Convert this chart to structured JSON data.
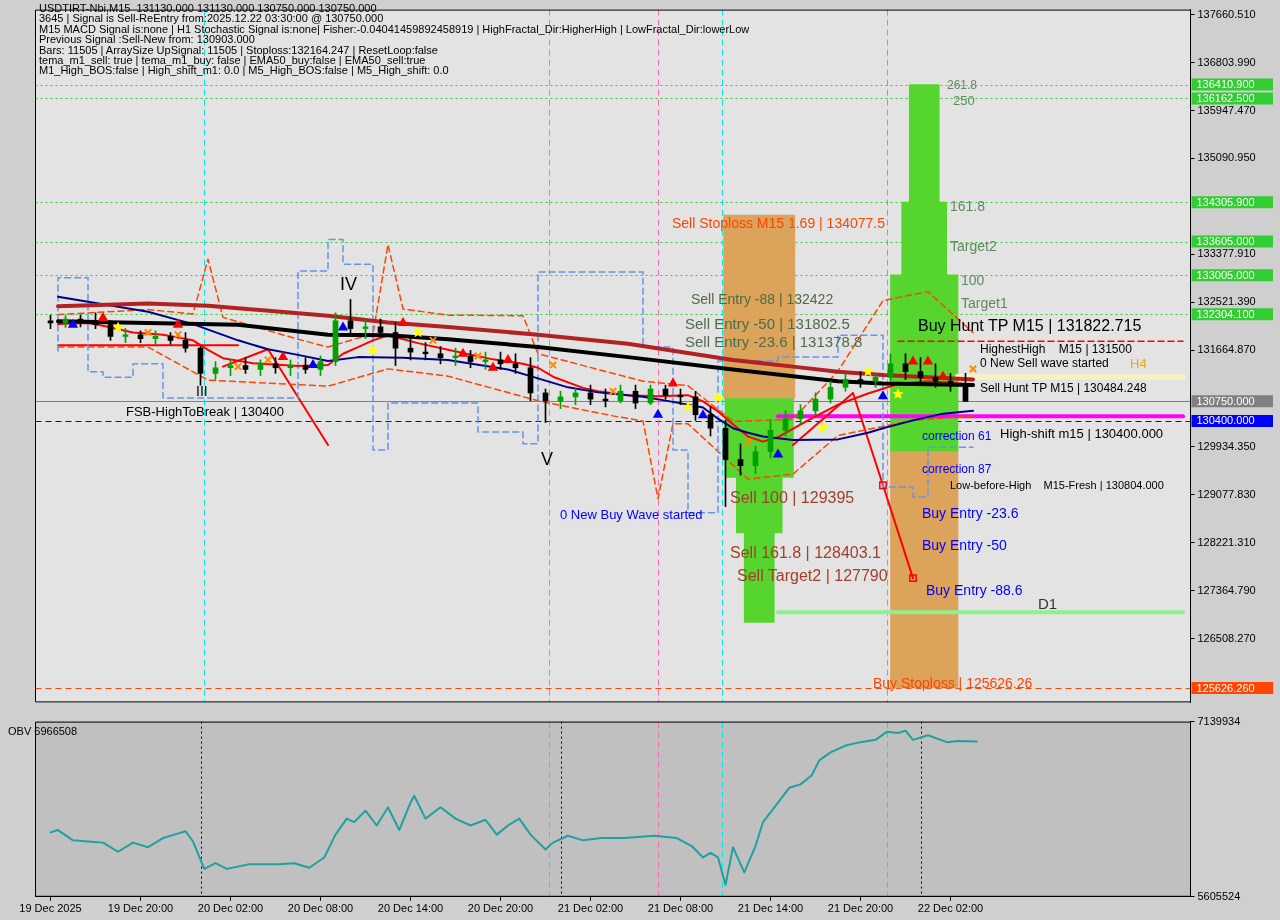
{
  "chart_data": [
    {
      "type": "candlestick",
      "xlim": [
        "2025-12-19T13:00",
        "2025-12-22T18:00"
      ],
      "ylim": [
        125370,
        137750
      ],
      "tick_labels": "y",
      "yticks": [
        {
          "value": 137660.51,
          "label": "137660.510"
        },
        {
          "value": 136803.99,
          "label": "136803.990"
        },
        {
          "value": 135947.47,
          "label": "135947.470"
        },
        {
          "value": 135090.95,
          "label": "135090.950"
        },
        {
          "value": 133377.91,
          "label": "133377.910"
        },
        {
          "value": 132521.39,
          "label": "132521.390"
        },
        {
          "value": 131664.87,
          "label": "131664.870"
        },
        {
          "value": 129934.35,
          "label": "129934.350"
        },
        {
          "value": 129077.83,
          "label": "129077.830"
        },
        {
          "value": 128221.31,
          "label": "128221.310"
        },
        {
          "value": 127364.79,
          "label": "127364.790"
        },
        {
          "value": 126508.27,
          "label": "126508.270"
        }
      ],
      "ref_lines": [
        {
          "axis": "y",
          "value": 136410.9,
          "label": "136410.900",
          "color": "#32cd32",
          "line_style": "dotted"
        },
        {
          "axis": "y",
          "value": 136162.5,
          "label": "136162.500",
          "color": "#32cd32",
          "line_style": "dotted"
        },
        {
          "axis": "y",
          "value": 134305.9,
          "label": "134305.900",
          "color": "#32cd32",
          "line_style": "dotted"
        },
        {
          "axis": "y",
          "value": 133605,
          "label": "133605.000",
          "color": "#32cd32",
          "line_style": "dotted"
        },
        {
          "axis": "y",
          "value": 133005,
          "label": "133005.000",
          "color": "#32cd32",
          "line_style": "dotted"
        },
        {
          "axis": "y",
          "value": 132304.1,
          "label": "132304.100",
          "color": "#32cd32",
          "line_style": "dotted"
        },
        {
          "axis": "y",
          "value": 130750,
          "label": "130750.000",
          "color": "#808080",
          "line_style": "solid"
        },
        {
          "axis": "y",
          "value": 130400,
          "label": "130400.000",
          "color": "#0000ff",
          "line_style": "dashed"
        },
        {
          "axis": "y",
          "value": 125626.26,
          "label": "125626.260",
          "color": "#ff4500",
          "line_style": "dashed"
        },
        {
          "axis": "x",
          "value": "2025-12-20T00:15",
          "color": "#00e5ee",
          "line_style": "dashed"
        },
        {
          "axis": "x",
          "value": "2025-12-20T23:15",
          "color": "#00e5ee",
          "line_style": "dashed"
        },
        {
          "axis": "x",
          "value": "2025-12-21T10:45",
          "color": "#00e5ee",
          "line_style": "dashed"
        },
        {
          "axis": "x",
          "value": "2025-12-21T06:30",
          "color": "#ff69b4",
          "line_style": "dashed"
        },
        {
          "axis": "x",
          "value": "2025-12-21T21:45",
          "color": "#ff69b4",
          "line_style": "dashed"
        }
      ],
      "annotations": [
        "USDTIRT-Nbi,M15  131130.000 131130.000 130750.000 130750.000",
        "3645 | Signal is Sell-ReEntry from:2025.12.22 03:30:00 @ 130750.000",
        "M15 MACD Signal is:none | H1 Stochastic Signal is:none| Fisher:-0.04041459892458919 | HighFractal_Dir:HigherHigh | LowFractal_Dir:lowerLow",
        "Previous Signal :Sell-New from: 130903.000",
        "Bars: 11505 | ArraySize UpSignal: 11505 | Stoploss:132164.247 | ResetLoop:false",
        "tema_m1_sell: true | tema_m1_buy: false | EMA50_buy:false | EMA50_sell:true",
        "M1_High_BOS:false | High_shift_m1: 0.0 | M5_High_BOS:false | M5_High_shift: 0.0",
        "Sell Stoploss M15 1.69 | 134077.5",
        "Sell Entry -88 | 132422",
        "Sell Entry -50 | 131802.5",
        "Sell Entry -23.6 | 131378.8",
        "High-shift m15 | 130400.000",
        "0 New Sell wave started",
        "0 New Buy Wave started",
        "Sell 100 | 129395",
        "Sell 161.8 | 128403.1",
        "Sell Target2 | 127790",
        "Buy Hunt TP M15 | 131822.715",
        "HighestHigh    M15 | 131500",
        "Low-before-High    M15-Fresh | 130804.000",
        "Sell Hunt TP M15 | 130484.248",
        "correction 61",
        "correction 87",
        "Buy Entry -23.6",
        "Buy Entry -50",
        "Buy Entry -88.6",
        "Buy Stoploss | 125626.26",
        "261.8",
        "250",
        "161.8",
        "Target2",
        "100",
        "Target1",
        "H4",
        "D1",
        "FSB-HighToBreak | 130400",
        "IV",
        "V",
        "III"
      ],
      "series": [
        {
          "type": "candlestick",
          "x": [
            "2025-12-19T14:00",
            "2025-12-19T15:00",
            "2025-12-19T16:00",
            "2025-12-19T17:00",
            "2025-12-19T18:00",
            "2025-12-19T19:00",
            "2025-12-19T20:00",
            "2025-12-19T21:00",
            "2025-12-19T22:00",
            "2025-12-19T23:00",
            "2025-12-20T00:00",
            "2025-12-20T01:00",
            "2025-12-20T02:00",
            "2025-12-20T03:00",
            "2025-12-20T04:00",
            "2025-12-20T05:00",
            "2025-12-20T06:00",
            "2025-12-20T07:00",
            "2025-12-20T08:00",
            "2025-12-20T09:00",
            "2025-12-20T10:00",
            "2025-12-20T11:00",
            "2025-12-20T12:00",
            "2025-12-20T13:00",
            "2025-12-20T14:00",
            "2025-12-20T15:00",
            "2025-12-20T16:00",
            "2025-12-20T17:00",
            "2025-12-20T18:00",
            "2025-12-20T19:00",
            "2025-12-20T20:00",
            "2025-12-20T21:00",
            "2025-12-20T22:00",
            "2025-12-20T23:00",
            "2025-12-21T00:00",
            "2025-12-21T01:00",
            "2025-12-21T02:00",
            "2025-12-21T03:00",
            "2025-12-21T04:00",
            "2025-12-21T05:00",
            "2025-12-21T06:00",
            "2025-12-21T07:00",
            "2025-12-21T08:00",
            "2025-12-21T09:00",
            "2025-12-21T10:00",
            "2025-12-21T11:00",
            "2025-12-21T12:00",
            "2025-12-21T13:00",
            "2025-12-21T14:00",
            "2025-12-21T15:00",
            "2025-12-21T16:00",
            "2025-12-21T17:00",
            "2025-12-21T18:00",
            "2025-12-21T19:00",
            "2025-12-21T20:00",
            "2025-12-21T21:00",
            "2025-12-21T22:00",
            "2025-12-21T23:00",
            "2025-12-22T00:00",
            "2025-12-22T01:00",
            "2025-12-22T02:00",
            "2025-12-22T03:00"
          ],
          "ohlc": [
            [
              132190,
              132290,
              132050,
              132150
            ],
            [
              132150,
              132280,
              132070,
              132220
            ],
            [
              132220,
              132290,
              132080,
              132190
            ],
            [
              132190,
              132330,
              132050,
              132120
            ],
            [
              132120,
              132190,
              131840,
              131910
            ],
            [
              131910,
              132050,
              131800,
              131940
            ],
            [
              131940,
              132010,
              131800,
              131870
            ],
            [
              131870,
              132010,
              131770,
              131910
            ],
            [
              131910,
              131980,
              131770,
              131840
            ],
            [
              131840,
              131980,
              131630,
              131700
            ],
            [
              131700,
              131730,
              131040,
              131250
            ],
            [
              131250,
              131460,
              131140,
              131350
            ],
            [
              131350,
              131490,
              131210,
              131390
            ],
            [
              131390,
              131530,
              131250,
              131320
            ],
            [
              131320,
              131490,
              131210,
              131420
            ],
            [
              131420,
              131530,
              131250,
              131350
            ],
            [
              131350,
              131490,
              131210,
              131390
            ],
            [
              131390,
              131530,
              131250,
              131320
            ],
            [
              131320,
              131560,
              131210,
              131460
            ],
            [
              131460,
              132330,
              131390,
              132190
            ],
            [
              132190,
              132570,
              131910,
              132050
            ],
            [
              132050,
              132220,
              131870,
              132080
            ],
            [
              132080,
              132220,
              131910,
              131980
            ],
            [
              131980,
              132150,
              131390,
              131700
            ],
            [
              131700,
              131870,
              131490,
              131630
            ],
            [
              131630,
              131800,
              131490,
              131600
            ],
            [
              131600,
              131730,
              131420,
              131530
            ],
            [
              131530,
              131700,
              131390,
              131560
            ],
            [
              131560,
              131660,
              131350,
              131460
            ],
            [
              131460,
              131630,
              131320,
              131490
            ],
            [
              131490,
              131630,
              131320,
              131420
            ],
            [
              131420,
              131600,
              131250,
              131350
            ],
            [
              131350,
              131530,
              130760,
              130900
            ],
            [
              130900,
              130970,
              130370,
              130760
            ],
            [
              130760,
              130930,
              130620,
              130830
            ],
            [
              130830,
              131000,
              130690,
              130900
            ],
            [
              130900,
              131040,
              130690,
              130790
            ],
            [
              130790,
              130970,
              130650,
              130760
            ],
            [
              130760,
              131040,
              130720,
              130930
            ],
            [
              130930,
              131040,
              130620,
              130720
            ],
            [
              130720,
              131040,
              130690,
              130970
            ],
            [
              130970,
              131040,
              130790,
              130860
            ],
            [
              130860,
              130970,
              130690,
              130830
            ],
            [
              130830,
              130930,
              130410,
              130510
            ],
            [
              130510,
              130650,
              130130,
              130270
            ],
            [
              130270,
              130410,
              128870,
              129710
            ],
            [
              129710,
              129990,
              129430,
              129600
            ],
            [
              129600,
              129950,
              129460,
              129850
            ],
            [
              129850,
              130410,
              129740,
              130230
            ],
            [
              130230,
              130580,
              130130,
              130440
            ],
            [
              130440,
              130690,
              130340,
              130580
            ],
            [
              130580,
              130900,
              130510,
              130790
            ],
            [
              130790,
              131110,
              130720,
              131000
            ],
            [
              131000,
              131250,
              130930,
              131140
            ],
            [
              131140,
              131280,
              131000,
              131110
            ],
            [
              131110,
              131250,
              131000,
              131180
            ],
            [
              131180,
              131600,
              131110,
              131420
            ],
            [
              131420,
              131600,
              131140,
              131280
            ],
            [
              131280,
              131530,
              131040,
              131180
            ],
            [
              131180,
              131420,
              131000,
              131110
            ],
            [
              131110,
              131250,
              130930,
              131040
            ],
            [
              131040,
              131250,
              130750,
              130750
            ]
          ],
          "colors": [
            "#000000",
            "#00a000",
            "#000000",
            "#000000",
            "#000000",
            "#00a000",
            "#000000",
            "#00a000",
            "#000000",
            "#000000",
            "#000000",
            "#00a000",
            "#00a000",
            "#000000",
            "#00a000",
            "#000000",
            "#00a000",
            "#000000",
            "#00a000",
            "#00a000",
            "#000000",
            "#00a000",
            "#000000",
            "#000000",
            "#000000",
            "#000000",
            "#000000",
            "#00a000",
            "#000000",
            "#00a000",
            "#000000",
            "#000000",
            "#000000",
            "#000000",
            "#00a000",
            "#00a000",
            "#000000",
            "#000000",
            "#00a000",
            "#000000",
            "#00a000",
            "#000000",
            "#000000",
            "#000000",
            "#000000",
            "#000000",
            "#000000",
            "#00a000",
            "#00a000",
            "#00a000",
            "#00a000",
            "#00a000",
            "#00a000",
            "#00a000",
            "#000000",
            "#00a000",
            "#00a000",
            "#000000",
            "#000000",
            "#000000",
            "#000000",
            "#000000"
          ]
        },
        {
          "type": "bar",
          "colors": [
            "#55d52d",
            "#dca35a"
          ],
          "x": [
            "2025-12-21T13:15",
            "2025-12-22T00:15"
          ],
          "base": [
            126800,
            125630
          ],
          "values": [
            1600,
            4220
          ]
        },
        {
          "type": "bar",
          "color": "#55d52d",
          "x": [
            "2025-12-21T13:15",
            "2025-12-22T00:15"
          ],
          "base": [
            128400,
            129850
          ],
          "values": [
            990,
            3160
          ]
        },
        {
          "type": "bar",
          "color": "#55d52d",
          "x": [
            "2025-12-21T13:15",
            "2025-12-22T00:15"
          ],
          "base": [
            129390,
            133010
          ],
          "values": [
            1410,
            1300
          ]
        },
        {
          "type": "bar",
          "colors": [
            "#dca35a",
            "#55d52d"
          ],
          "x": [
            "2025-12-21T13:15",
            "2025-12-22T00:15"
          ],
          "base": [
            130800,
            134310
          ],
          "values": [
            3280,
            2100
          ]
        },
        {
          "type": "line",
          "color": "#b22222",
          "x": [
            "2025-12-19T14:30",
            "2025-12-19T20:30",
            "2025-12-20T00:30",
            "2025-12-20T08:30",
            "2025-12-20T12:30",
            "2025-12-20T16:30",
            "2025-12-20T22:30",
            "2025-12-21T04:30",
            "2025-12-21T11:30",
            "2025-12-21T15:30",
            "2025-12-21T18:30",
            "2025-12-21T21:30",
            "2025-12-22T03:30"
          ],
          "values": [
            132450,
            132500,
            132460,
            132280,
            132160,
            132080,
            131940,
            131780,
            131490,
            131370,
            131280,
            131220,
            131140
          ]
        },
        {
          "type": "line",
          "color": "#000000",
          "x": [
            "2025-12-19T14:30",
            "2025-12-19T20:30",
            "2025-12-20T02:30",
            "2025-12-20T08:30",
            "2025-12-20T12:30",
            "2025-12-20T16:30",
            "2025-12-20T22:30",
            "2025-12-21T04:30",
            "2025-12-21T11:30",
            "2025-12-21T15:30",
            "2025-12-21T18:30",
            "2025-12-21T21:30",
            "2025-12-22T03:30"
          ],
          "values": [
            132180,
            132150,
            132120,
            131940,
            131930,
            131860,
            131720,
            131540,
            131320,
            131200,
            131110,
            131070,
            131040
          ]
        },
        {
          "type": "line",
          "color": "#00008b",
          "x": [
            "2025-12-19T14:30",
            "2025-12-19T20:30",
            "2025-12-19T23:30",
            "2025-12-20T02:30",
            "2025-12-20T04:30",
            "2025-12-20T06:30",
            "2025-12-20T08:30",
            "2025-12-20T10:30",
            "2025-12-20T13:30",
            "2025-12-20T16:30",
            "2025-12-20T20:30",
            "2025-12-20T22:30",
            "2025-12-21T00:30",
            "2025-12-21T02:30",
            "2025-12-21T05:30",
            "2025-12-21T07:30",
            "2025-12-21T09:30",
            "2025-12-21T10:30",
            "2025-12-21T11:30",
            "2025-12-21T12:30",
            "2025-12-21T13:30",
            "2025-12-21T15:30",
            "2025-12-21T18:30",
            "2025-12-21T20:30",
            "2025-12-21T21:30",
            "2025-12-21T23:30",
            "2025-12-22T01:30",
            "2025-12-22T03:30"
          ],
          "values": [
            132620,
            132350,
            132130,
            131840,
            131680,
            131580,
            131470,
            131540,
            131530,
            131490,
            131320,
            131160,
            131000,
            130910,
            130830,
            130740,
            130640,
            130440,
            130270,
            130190,
            130120,
            130060,
            130070,
            130190,
            130270,
            130410,
            130530,
            130580
          ]
        },
        {
          "type": "line",
          "color": "#ff0000",
          "x": [
            "2025-12-19T14:30",
            "2025-12-19T16:30",
            "2025-12-19T17:30",
            "2025-12-19T19:30",
            "2025-12-19T21:30",
            "2025-12-19T23:30",
            "2025-12-20T00:30",
            "2025-12-20T01:30",
            "2025-12-20T03:30",
            "2025-12-20T06:30",
            "2025-12-20T08:30",
            "2025-12-20T09:30",
            "2025-12-20T10:30",
            "2025-12-20T11:30",
            "2025-12-20T12:30",
            "2025-12-20T14:30",
            "2025-12-20T16:30",
            "2025-12-20T19:30",
            "2025-12-20T21:30",
            "2025-12-20T22:30",
            "2025-12-20T23:30",
            "2025-12-21T01:30",
            "2025-12-21T02:30",
            "2025-12-21T04:30",
            "2025-12-21T06:30",
            "2025-12-21T08:30",
            "2025-12-21T09:30",
            "2025-12-21T10:30",
            "2025-12-21T11:30",
            "2025-12-21T12:30",
            "2025-12-21T13:30",
            "2025-12-21T14:30",
            "2025-12-21T16:30",
            "2025-12-21T18:30",
            "2025-12-21T20:30",
            "2025-12-21T22:30",
            "2025-12-22T00:30",
            "2025-12-22T03:30"
          ],
          "values": [
            132130,
            132150,
            132100,
            131980,
            131940,
            131840,
            131670,
            131520,
            131430,
            131380,
            131400,
            131600,
            131720,
            131840,
            131930,
            131790,
            131670,
            131500,
            131420,
            131350,
            131190,
            130990,
            130930,
            130860,
            130840,
            130860,
            130750,
            130570,
            130340,
            130120,
            130030,
            130110,
            130410,
            130690,
            130890,
            131060,
            131110,
            131050
          ]
        },
        {
          "type": "step",
          "color": "#6495ed",
          "line_style": "dashed",
          "x": [
            "2025-12-19T14:30",
            "2025-12-19T16:30",
            "2025-12-19T17:30",
            "2025-12-19T19:30",
            "2025-12-19T21:30",
            "2025-12-20T06:30",
            "2025-12-20T08:30",
            "2025-12-20T09:30",
            "2025-12-20T11:30",
            "2025-12-20T12:30",
            "2025-12-20T18:30",
            "2025-12-20T21:30",
            "2025-12-20T22:30",
            "2025-12-21T05:30",
            "2025-12-21T07:30",
            "2025-12-21T08:30",
            "2025-12-21T10:30",
            "2025-12-21T14:30",
            "2025-12-21T18:30",
            "2025-12-21T21:30",
            "2025-12-21T23:30",
            "2025-12-22T00:30",
            "2025-12-22T01:30",
            "2025-12-22T03:30"
          ],
          "values": [
            131650,
            132960,
            131280,
            131180,
            131420,
            130810,
            133080,
            133640,
            133200,
            129880,
            130720,
            130200,
            129990,
            133060,
            131720,
            129880,
            128760,
            131470,
            131540,
            131930,
            129220,
            129040,
            129930,
            129930
          ]
        },
        {
          "type": "line",
          "color": "#ff4500",
          "line_style": "dashed",
          "x": [
            "2025-12-19T14:30",
            "2025-12-19T20:30",
            "2025-12-19T23:30",
            "2025-12-20T00:30",
            "2025-12-20T01:30",
            "2025-12-20T06:30",
            "2025-12-20T08:30",
            "2025-12-20T11:30",
            "2025-12-20T12:30",
            "2025-12-20T13:30",
            "2025-12-20T16:30",
            "2025-12-20T21:30",
            "2025-12-20T22:30",
            "2025-12-21T05:30",
            "2025-12-21T08:30",
            "2025-12-21T11:30",
            "2025-12-21T15:30",
            "2025-12-21T18:30",
            "2025-12-21T21:30",
            "2025-12-22T00:30",
            "2025-12-22T03:30"
          ],
          "values": [
            132300,
            132390,
            132310,
            133290,
            132250,
            131860,
            131720,
            131960,
            133550,
            132400,
            132290,
            132280,
            131600,
            131110,
            131030,
            130390,
            130430,
            131290,
            132550,
            132710,
            131980
          ]
        },
        {
          "type": "line",
          "color": "#ff4500",
          "line_style": "dashed",
          "x": [
            "2025-12-19T14:30",
            "2025-12-19T20:30",
            "2025-12-20T00:30",
            "2025-12-20T08:30",
            "2025-12-20T12:30",
            "2025-12-20T16:30",
            "2025-12-20T22:30",
            "2025-12-21T03:30",
            "2025-12-21T05:30",
            "2025-12-21T06:30",
            "2025-12-21T07:30",
            "2025-12-21T08:30",
            "2025-12-21T12:30",
            "2025-12-21T15:30",
            "2025-12-21T18:30",
            "2025-12-21T23:30",
            "2025-12-22T03:30"
          ],
          "values": [
            131720,
            131720,
            131130,
            131020,
            131330,
            131200,
            130760,
            130490,
            130400,
            129010,
            130350,
            130350,
            129360,
            129450,
            130140,
            130410,
            130490
          ]
        },
        {
          "type": "line",
          "color": "#ff0000",
          "x": [
            "2025-12-19T14:30",
            "2025-12-20T02:30"
          ],
          "values": [
            131750,
            131750
          ]
        },
        {
          "type": "line",
          "color": "#ff0000",
          "x": [
            "2025-12-20T01:30",
            "2025-12-20T04:30",
            "2025-12-20T08:30"
          ],
          "values": [
            131370,
            131680,
            129970
          ]
        },
        {
          "type": "line",
          "color": "#ff0000",
          "x": [
            "2025-12-21T15:30",
            "2025-12-21T19:30",
            "2025-12-21T21:30",
            "2025-12-21T23:30"
          ],
          "values": [
            129970,
            130900,
            129250,
            127590
          ]
        },
        {
          "type": "scatter",
          "color": "#ff0000",
          "marker": "square",
          "x": [
            "2025-12-21T21:30",
            "2025-12-21T23:30"
          ],
          "values": [
            129250,
            127590
          ]
        },
        {
          "type": "line",
          "color": "#ff0000",
          "line_style": "dashed",
          "x": [
            "2025-12-21T22:30",
            "2025-12-22T17:30"
          ],
          "values": [
            131822.715,
            131822.715
          ]
        },
        {
          "type": "line",
          "color": "#ff00ff",
          "x": [
            "2025-12-21T14:30",
            "2025-12-22T17:30"
          ],
          "values": [
            130484.248,
            130484.248
          ]
        },
        {
          "type": "line",
          "color": "#f5f0c8",
          "x": [
            "2025-12-22T02:30",
            "2025-12-22T17:30"
          ],
          "values": [
            131190,
            131190
          ]
        },
        {
          "type": "line",
          "color": "#90ee90",
          "x": [
            "2025-12-21T14:30",
            "2025-12-22T17:30"
          ],
          "values": [
            126980,
            126980
          ]
        },
        {
          "type": "scatter",
          "color": "#ff0000",
          "marker": "triangle",
          "x": [
            "2025-12-19T17:30",
            "2025-12-19T22:30",
            "2025-12-20T05:30",
            "2025-12-20T13:30",
            "2025-12-20T17:30",
            "2025-12-20T19:30",
            "2025-12-20T20:30",
            "2025-12-21T07:30",
            "2025-12-21T23:30",
            "2025-12-22T00:30",
            "2025-12-22T01:30"
          ],
          "values": [
            132240,
            132120,
            131540,
            132150,
            131600,
            131350,
            131490,
            131070,
            131460,
            131460,
            131190
          ]
        },
        {
          "type": "scatter",
          "color": "#0000ff",
          "marker": "triangle",
          "x": [
            "2025-12-19T15:30",
            "2025-12-20T07:30",
            "2025-12-20T09:30",
            "2025-12-21T06:30",
            "2025-12-21T09:30",
            "2025-12-21T14:30",
            "2025-12-21T21:30"
          ],
          "values": [
            132120,
            131400,
            132070,
            130510,
            130500,
            129800,
            130840
          ]
        },
        {
          "type": "scatter",
          "color": "#ffff00",
          "marker": "star",
          "x": [
            "2025-12-19T18:30",
            "2025-12-20T11:30",
            "2025-12-20T14:30",
            "2025-12-21T08:30",
            "2025-12-21T10:30",
            "2025-12-21T17:30",
            "2025-12-21T20:30",
            "2025-12-21T22:30"
          ],
          "values": [
            132070,
            131660,
            131980,
            130650,
            130810,
            130280,
            131280,
            130880
          ]
        },
        {
          "type": "scatter",
          "color": "#ff8c00",
          "marker": "cross",
          "x": [
            "2025-12-19T20:30",
            "2025-12-19T22:30",
            "2025-12-20T02:30",
            "2025-12-20T04:30",
            "2025-12-20T15:30",
            "2025-12-20T18:30",
            "2025-12-20T23:30",
            "2025-12-21T03:30",
            "2025-12-21T12:30",
            "2025-12-22T03:30"
          ],
          "values": [
            131980,
            131940,
            131370,
            131490,
            131840,
            131560,
            131400,
            130930,
            130020,
            131330
          ]
        }
      ]
    },
    {
      "type": "line",
      "title": "OBV 6966508",
      "color": "#20a0a0",
      "xlim": [
        "2025-12-19T13:00",
        "2025-12-22T18:00"
      ],
      "ylim": [
        5605524,
        7139934
      ],
      "yticks": [
        5605524,
        7139934
      ],
      "xticks": [
        {
          "value": "2025-12-19T14:00",
          "label": "19 Dec 2025"
        },
        {
          "value": "2025-12-19T20:00",
          "label": "19 Dec 20:00"
        },
        {
          "value": "2025-12-20T02:00",
          "label": "20 Dec 02:00"
        },
        {
          "value": "2025-12-20T08:00",
          "label": "20 Dec 08:00"
        },
        {
          "value": "2025-12-20T14:00",
          "label": "20 Dec 14:00"
        },
        {
          "value": "2025-12-20T20:00",
          "label": "20 Dec 20:00"
        },
        {
          "value": "2025-12-21T02:00",
          "label": "21 Dec 02:00"
        },
        {
          "value": "2025-12-21T08:00",
          "label": "21 Dec 08:00"
        },
        {
          "value": "2025-12-21T14:00",
          "label": "21 Dec 14:00"
        },
        {
          "value": "2025-12-21T20:00",
          "label": "21 Dec 20:00"
        },
        {
          "value": "2025-12-22T02:00",
          "label": "22 Dec 02:00"
        }
      ],
      "ref_lines": [
        {
          "axis": "x",
          "value": "2025-12-20T00:00",
          "color": "#000000",
          "line_style": "dotted"
        },
        {
          "axis": "x",
          "value": "2025-12-21T00:00",
          "color": "#000000",
          "line_style": "dotted"
        },
        {
          "axis": "x",
          "value": "2025-12-22T00:00",
          "color": "#000000",
          "line_style": "dotted"
        },
        {
          "axis": "x",
          "value": "2025-12-20T23:15",
          "color": "#00e5ee",
          "line_style": "dashed"
        },
        {
          "axis": "x",
          "value": "2025-12-21T10:45",
          "color": "#00e5ee",
          "line_style": "dashed"
        },
        {
          "axis": "x",
          "value": "2025-12-21T06:30",
          "color": "#ff69b4",
          "line_style": "dashed"
        },
        {
          "axis": "x",
          "value": "2025-12-21T21:45",
          "color": "#ff69b4",
          "line_style": "dashed"
        }
      ],
      "x": [
        "2025-12-19T14:00",
        "2025-12-19T14:30",
        "2025-12-19T15:30",
        "2025-12-19T16:30",
        "2025-12-19T17:30",
        "2025-12-19T18:30",
        "2025-12-19T19:30",
        "2025-12-19T20:30",
        "2025-12-19T21:30",
        "2025-12-19T22:15",
        "2025-12-19T23:00",
        "2025-12-19T23:30",
        "2025-12-20T00:15",
        "2025-12-20T01:00",
        "2025-12-20T01:45",
        "2025-12-20T03:15",
        "2025-12-20T05:15",
        "2025-12-20T06:15",
        "2025-12-20T07:15",
        "2025-12-20T08:15",
        "2025-12-20T09:00",
        "2025-12-20T09:45",
        "2025-12-20T10:15",
        "2025-12-20T11:00",
        "2025-12-20T11:45",
        "2025-12-20T12:30",
        "2025-12-20T13:15",
        "2025-12-20T14:00",
        "2025-12-20T14:15",
        "2025-12-20T15:00",
        "2025-12-20T16:00",
        "2025-12-20T17:00",
        "2025-12-20T18:00",
        "2025-12-20T19:00",
        "2025-12-20T19:45",
        "2025-12-20T20:30",
        "2025-12-20T21:15",
        "2025-12-20T22:00",
        "2025-12-20T23:00",
        "2025-12-20T23:30",
        "2025-12-21T00:30",
        "2025-12-21T01:30",
        "2025-12-21T02:45",
        "2025-12-21T04:15",
        "2025-12-21T06:15",
        "2025-12-21T07:45",
        "2025-12-21T08:45",
        "2025-12-21T09:30",
        "2025-12-21T10:00",
        "2025-12-21T10:30",
        "2025-12-21T11:00",
        "2025-12-21T11:30",
        "2025-12-21T12:15",
        "2025-12-21T13:00",
        "2025-12-21T13:30",
        "2025-12-21T14:30",
        "2025-12-21T15:15",
        "2025-12-21T16:00",
        "2025-12-21T16:45",
        "2025-12-21T17:15",
        "2025-12-21T18:00",
        "2025-12-21T19:00",
        "2025-12-21T20:00",
        "2025-12-21T21:00",
        "2025-12-21T21:45",
        "2025-12-21T22:30",
        "2025-12-21T23:00",
        "2025-12-21T23:30",
        "2025-12-22T00:30",
        "2025-12-22T01:45",
        "2025-12-22T02:30",
        "2025-12-22T03:45"
      ],
      "values": [
        6170000,
        6190000,
        6100000,
        6090000,
        6080000,
        6000000,
        6080000,
        6040000,
        6120000,
        6150000,
        6180000,
        6090000,
        5850000,
        5900000,
        5850000,
        5890000,
        5890000,
        5900000,
        5860000,
        5950000,
        6150000,
        6290000,
        6260000,
        6360000,
        6230000,
        6390000,
        6190000,
        6430000,
        6490000,
        6290000,
        6390000,
        6290000,
        6230000,
        6280000,
        6150000,
        6230000,
        6290000,
        6150000,
        6020000,
        6080000,
        6140000,
        6100000,
        6120000,
        6120000,
        6140000,
        6120000,
        6050000,
        5950000,
        5990000,
        5950000,
        5710000,
        6040000,
        5820000,
        6050000,
        6260000,
        6430000,
        6560000,
        6590000,
        6670000,
        6800000,
        6870000,
        6930000,
        6960000,
        6980000,
        7050000,
        7040000,
        7060000,
        6980000,
        7020000,
        6960000,
        6970000,
        6966508
      ]
    }
  ]
}
